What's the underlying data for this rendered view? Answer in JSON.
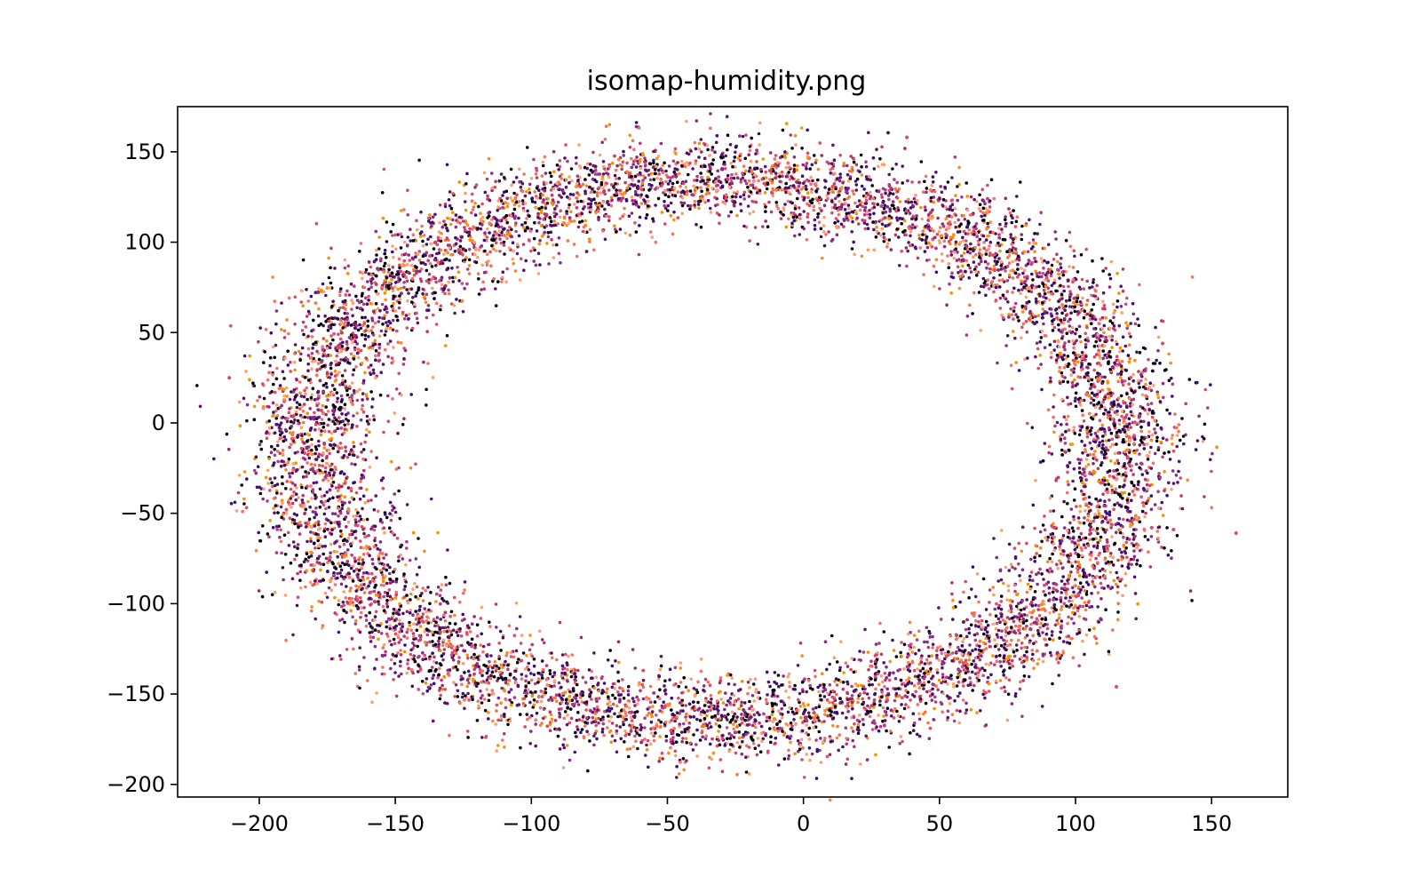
{
  "chart_data": {
    "type": "scatter",
    "title": "isomap-humidity.png",
    "xlabel": "",
    "ylabel": "",
    "xlim": [
      -230,
      178
    ],
    "ylim": [
      -207,
      175
    ],
    "xticks": [
      -200,
      -150,
      -100,
      -50,
      0,
      50,
      100,
      150
    ],
    "xtick_labels": [
      "−200",
      "−150",
      "−100",
      "−50",
      "0",
      "50",
      "100",
      "150"
    ],
    "yticks": [
      -200,
      -150,
      -100,
      -50,
      0,
      50,
      100,
      150
    ],
    "ytick_labels": [
      "−200",
      "−150",
      "−100",
      "−50",
      "0",
      "50",
      "100",
      "150"
    ],
    "grid": false,
    "legend": "none",
    "colormap": "inferno",
    "point_colors": [
      "#000004",
      "#3b0f70",
      "#5d126e",
      "#8c2981",
      "#b73779",
      "#de4968",
      "#f7705c",
      "#fe9f6d",
      "#f98e09",
      "#fcffa4"
    ],
    "ring": {
      "center": [
        -32,
        -15
      ],
      "radius_x": 150,
      "radius_y": 150,
      "thickness": 28,
      "approx_point_count": 9000
    },
    "outliers": [
      {
        "x": 38,
        "y": 158
      },
      {
        "x": -211,
        "y": 25
      },
      {
        "x": 132,
        "y": 44
      },
      {
        "x": 159,
        "y": -61
      },
      {
        "x": 136,
        "y": -59
      },
      {
        "x": 115,
        "y": -146
      },
      {
        "x": -190,
        "y": -48
      },
      {
        "x": 128,
        "y": -58
      }
    ]
  }
}
